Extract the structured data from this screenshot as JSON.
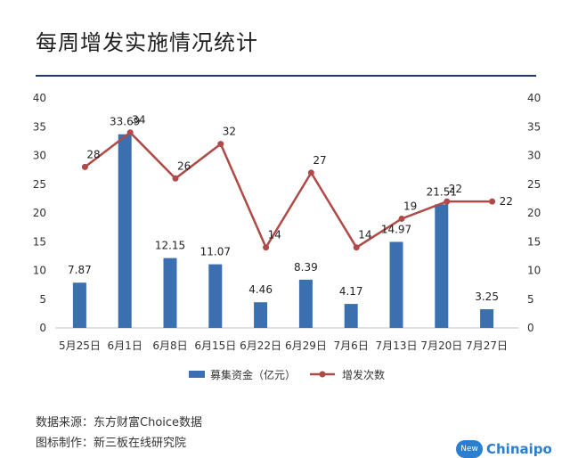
{
  "title": "每周增发实施情况统计",
  "source_line": "数据来源：东方财富Choice数据",
  "credit_line": "图标制作：新三板在线研究院",
  "logo_text": "Chinaipo",
  "logo_badge": "New",
  "colors": {
    "bar": "#3a6fb0",
    "line": "#b04a48",
    "rule": "#1f3864"
  },
  "chart_data": {
    "type": "bar",
    "categories": [
      "5月25日",
      "6月1日",
      "6月8日",
      "6月15日",
      "6月22日",
      "6月29日",
      "7月6日",
      "7月13日",
      "7月20日",
      "7月27日"
    ],
    "series": [
      {
        "name": "募集资金（亿元）",
        "type": "bar",
        "axis": "left",
        "values": [
          7.87,
          33.69,
          12.15,
          11.07,
          4.46,
          8.39,
          4.17,
          14.97,
          21.51,
          3.25
        ],
        "labels": [
          "7.87",
          "33.69",
          "12.15",
          "11.07",
          "4.46",
          "8.39",
          "4.17",
          "14.97",
          "21.51",
          "3.25"
        ]
      },
      {
        "name": "增发次数",
        "type": "line",
        "axis": "right",
        "values": [
          28,
          34,
          26,
          32,
          14,
          27,
          14,
          19,
          22,
          22
        ],
        "labels": [
          "28",
          "34",
          "26",
          "32",
          "14",
          "27",
          "14",
          "19",
          "22",
          "22"
        ]
      }
    ],
    "ylim": [
      0,
      40
    ],
    "y2lim": [
      0,
      40
    ],
    "yticks": [
      "0",
      "5",
      "10",
      "15",
      "20",
      "25",
      "30",
      "35",
      "40"
    ],
    "y2ticks": [
      "0",
      "5",
      "10",
      "15",
      "20",
      "25",
      "30",
      "35",
      "40"
    ],
    "legend_position": "bottom",
    "grid": false
  }
}
